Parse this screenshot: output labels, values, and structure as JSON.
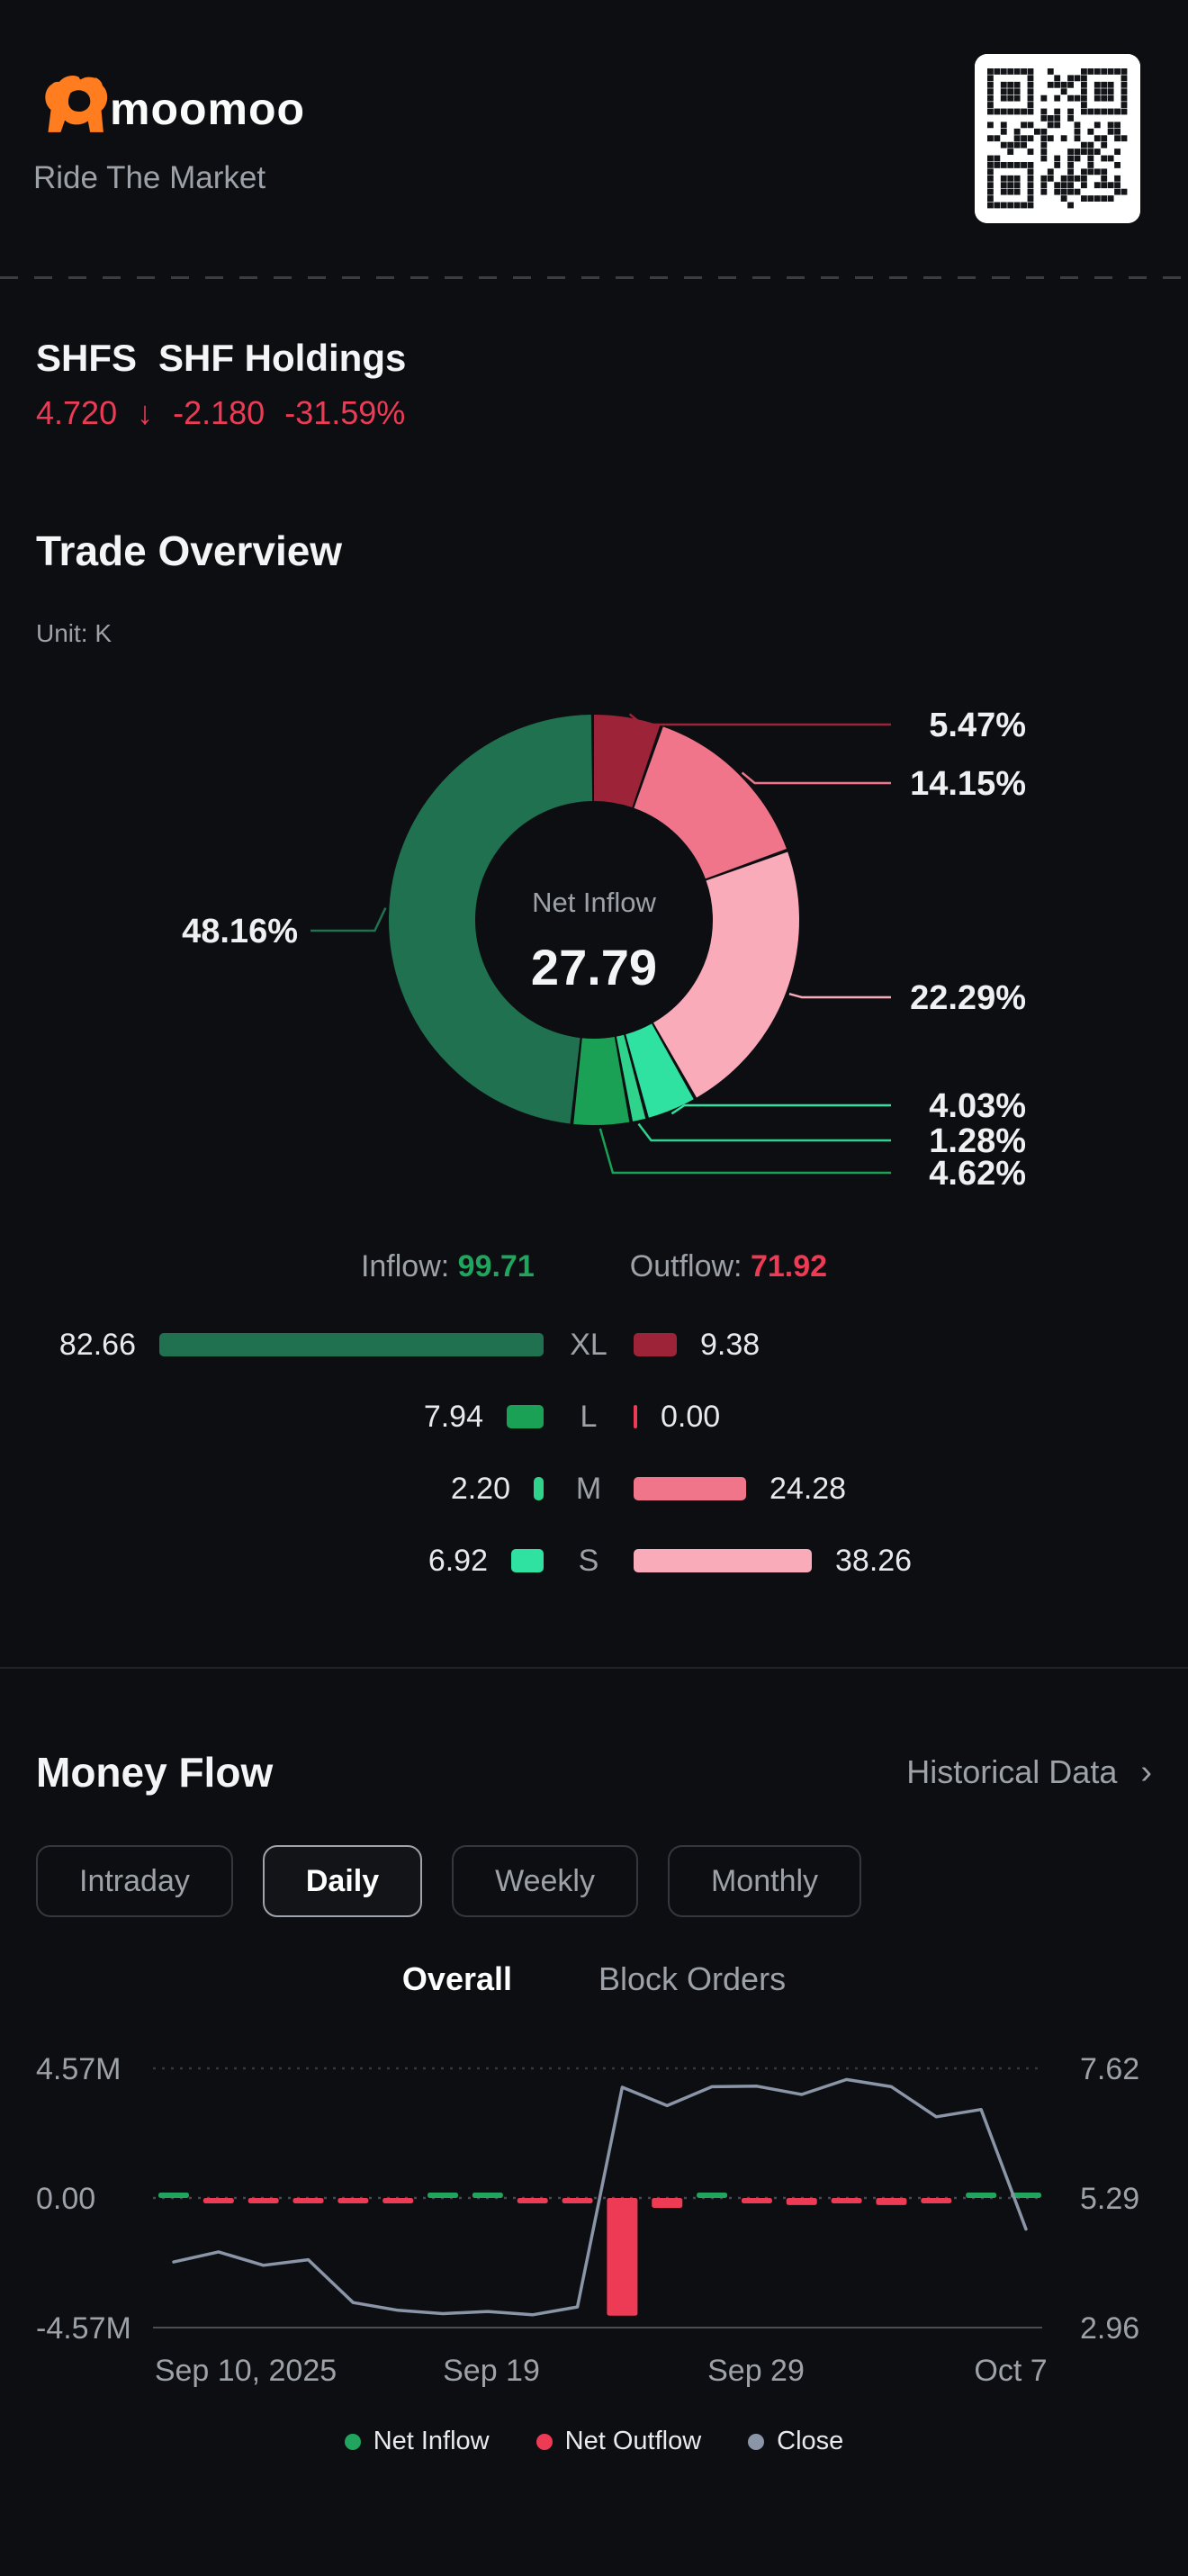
{
  "header": {
    "brand": "moomoo",
    "tagline": "Ride The Market"
  },
  "stock": {
    "symbol": "SHFS",
    "name": "SHF Holdings",
    "price": "4.720",
    "arrow": "↓",
    "change": "-2.180",
    "change_pct": "-31.59%",
    "down_color": "#ed3b56"
  },
  "trade_overview": {
    "title": "Trade Overview",
    "unit": "Unit: K",
    "inflow_label": "Inflow:",
    "inflow_value": "99.71",
    "outflow_label": "Outflow:",
    "outflow_value": "71.92",
    "inflow_color": "#21a55e",
    "outflow_color": "#ed3b56"
  },
  "money_flow": {
    "title": "Money Flow",
    "historical_link": "Historical Data",
    "chevron": "›",
    "period_tabs": [
      {
        "label": "Intraday",
        "active": false
      },
      {
        "label": "Daily",
        "active": true
      },
      {
        "label": "Weekly",
        "active": false
      },
      {
        "label": "Monthly",
        "active": false
      }
    ],
    "view_tabs": [
      {
        "label": "Overall",
        "active": true
      },
      {
        "label": "Block Orders",
        "active": false
      }
    ]
  },
  "legend": [
    {
      "label": "Net Inflow",
      "color": "#21a55e"
    },
    {
      "label": "Net Outflow",
      "color": "#ed3b56"
    },
    {
      "label": "Close",
      "color": "#8a96a8"
    }
  ],
  "chart_data": [
    {
      "type": "pie",
      "title": "Trade Overview donut (share of total traded value, Unit K)",
      "center_label": "Net Inflow",
      "center_value": "27.79",
      "slices": [
        {
          "name": "XL Outflow",
          "pct": 5.47,
          "color": "#9d2438",
          "side": "right",
          "label_y": 805
        },
        {
          "name": "M Outflow",
          "pct": 14.15,
          "color": "#f0758b",
          "side": "right",
          "label_y": 870
        },
        {
          "name": "S Outflow",
          "pct": 22.29,
          "color": "#f9abba",
          "side": "right",
          "label_y": 1108
        },
        {
          "name": "S Inflow",
          "pct": 4.03,
          "color": "#2fe2a2",
          "side": "right",
          "label_y": 1228
        },
        {
          "name": "M Inflow",
          "pct": 1.28,
          "color": "#2fd38c",
          "side": "right",
          "label_y": 1267
        },
        {
          "name": "L Inflow",
          "pct": 4.62,
          "color": "#1ba156",
          "side": "right",
          "label_y": 1303
        },
        {
          "name": "XL Inflow",
          "pct": 48.16,
          "color": "#20714f",
          "side": "left",
          "label_y": 1034
        }
      ]
    },
    {
      "type": "bar",
      "title": "Order-size inflow vs outflow (Unit K)",
      "categories": [
        "XL",
        "L",
        "M",
        "S"
      ],
      "series": [
        {
          "name": "Inflow",
          "values": [
            82.66,
            7.94,
            2.2,
            6.92
          ],
          "colors": [
            "#20714f",
            "#1ba156",
            "#2fd38c",
            "#2fe2a2"
          ]
        },
        {
          "name": "Outflow",
          "values": [
            9.38,
            0.0,
            24.28,
            38.26
          ],
          "colors": [
            "#9d2438",
            "#ed3b56",
            "#f0758b",
            "#f9abba"
          ]
        }
      ]
    },
    {
      "type": "line+bar",
      "title": "Money Flow Daily — Overall",
      "x_ticks": [
        "Sep 10, 2025",
        "Sep 19",
        "Sep 29",
        "Oct 7"
      ],
      "left_axis": {
        "labels": [
          "4.57M",
          "0.00",
          "-4.57M"
        ],
        "range": [
          -4.57,
          4.57
        ],
        "unit": "M"
      },
      "right_axis": {
        "labels": [
          "7.62",
          "5.29",
          "2.96"
        ],
        "range": [
          2.96,
          7.62
        ]
      },
      "close": [
        4.14,
        4.32,
        4.08,
        4.18,
        3.41,
        3.27,
        3.21,
        3.25,
        3.19,
        3.33,
        7.28,
        6.95,
        7.29,
        7.3,
        7.15,
        7.42,
        7.29,
        6.75,
        6.88,
        4.73
      ],
      "net_flow_m": [
        0.05,
        -0.05,
        -0.05,
        -0.05,
        -0.05,
        -0.05,
        0.05,
        0.05,
        -0.05,
        -0.05,
        -4.15,
        -0.35,
        0.06,
        -0.05,
        -0.25,
        -0.05,
        -0.25,
        -0.05,
        0.05,
        0.07
      ],
      "net_inflow_color": "#21a55e",
      "net_outflow_color": "#ed3b56",
      "close_color": "#8a96a8"
    }
  ]
}
